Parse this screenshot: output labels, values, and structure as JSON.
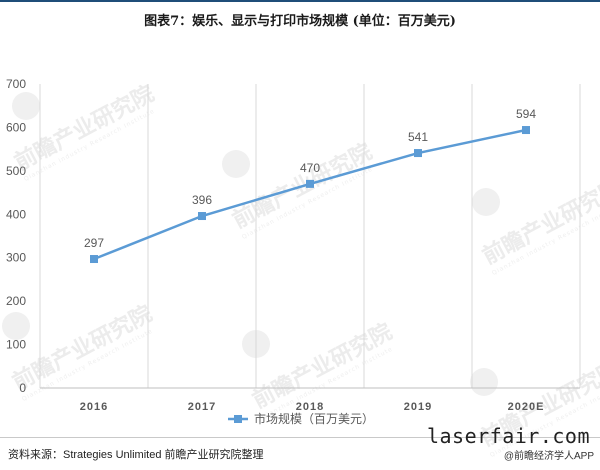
{
  "page": {
    "title": "图表7：娱乐、显示与打印市场规模 (单位：百万美元)",
    "source": "资料来源：Strategies Unlimited 前瞻产业研究院整理",
    "site": "laserfair.com",
    "app_credit": "@前瞻经济学人APP"
  },
  "watermark": {
    "text": "前瞻产业研究院",
    "subtext": "Qianzhan Industry Research Institute"
  },
  "colors": {
    "series": "#5b9bd5",
    "grid": "#d9d9d9",
    "axis_text": "#595959"
  },
  "chart_data": {
    "type": "line",
    "categories": [
      "2016",
      "2017",
      "2018",
      "2019",
      "2020E"
    ],
    "series": [
      {
        "name": "市场规模（百万美元）",
        "values": [
          297,
          396,
          470,
          541,
          594
        ]
      }
    ],
    "ylim": [
      0,
      700
    ],
    "yticks": [
      0,
      100,
      200,
      300,
      400,
      500,
      600,
      700
    ],
    "grid": "vertical",
    "legend_position": "bottom-center",
    "data_labels": true
  }
}
